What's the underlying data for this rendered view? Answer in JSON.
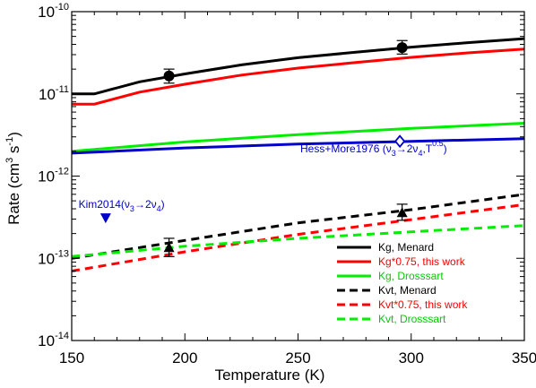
{
  "chart_data": {
    "type": "line",
    "xlabel": "Temperature (K)",
    "ylabel": {
      "main": "Rate (cm",
      "sup1": "3",
      "mid": " s",
      "sup2": "-1",
      "end": ")"
    },
    "xlim": [
      150,
      350
    ],
    "ylim_log10": [
      -14,
      -10
    ],
    "yscale": "log",
    "x_ticks": [
      150,
      200,
      250,
      300,
      350
    ],
    "x_tick_labels": [
      "150",
      "200",
      "250",
      "300",
      "350"
    ],
    "y_ticks": [
      -14,
      -13,
      -12,
      -11,
      -10
    ],
    "y_tick_labels": [
      {
        "base": "10",
        "exp": "-14"
      },
      {
        "base": "10",
        "exp": "-13"
      },
      {
        "base": "10",
        "exp": "-12"
      },
      {
        "base": "10",
        "exp": "-11"
      },
      {
        "base": "10",
        "exp": "-10"
      }
    ],
    "grid": false,
    "legend_position": "bottom-right",
    "series": [
      {
        "name": "Kg, Menard",
        "style": "solid",
        "color": "#000000",
        "x": [
          150,
          160,
          180,
          200,
          225,
          250,
          275,
          300,
          325,
          350
        ],
        "y": [
          1e-11,
          1e-11,
          1.4e-11,
          1.75e-11,
          2.25e-11,
          2.75e-11,
          3.2e-11,
          3.7e-11,
          4.2e-11,
          4.7e-11
        ]
      },
      {
        "name": "Kg*0.75, this work",
        "style": "solid",
        "color": "#ff0000",
        "x": [
          150,
          160,
          180,
          200,
          225,
          250,
          275,
          300,
          325,
          350
        ],
        "y": [
          7.5e-12,
          7.5e-12,
          1.05e-11,
          1.31e-11,
          1.69e-11,
          2.06e-11,
          2.4e-11,
          2.78e-11,
          3.15e-11,
          3.5e-11
        ]
      },
      {
        "name": "Kg, Drosssart",
        "style": "solid",
        "color": "#00ee00",
        "x": [
          150,
          200,
          250,
          300,
          350
        ],
        "y": [
          2e-12,
          2.6e-12,
          3.2e-12,
          3.8e-12,
          4.4e-12
        ]
      },
      {
        "name": "Hess+More1976",
        "style": "solid",
        "color": "#0000cc",
        "in_legend": false,
        "x": [
          150,
          200,
          250,
          300,
          350
        ],
        "y": [
          1.9e-12,
          2.2e-12,
          2.45e-12,
          2.65e-12,
          2.85e-12
        ]
      },
      {
        "name": "Kvt, Menard",
        "style": "dashed",
        "color": "#000000",
        "x": [
          150,
          200,
          250,
          300,
          350
        ],
        "y": [
          1e-13,
          1.65e-13,
          2.7e-13,
          3.9e-13,
          6e-13
        ]
      },
      {
        "name": "Kvt*0.75, this work",
        "style": "dashed",
        "color": "#ff0000",
        "x": [
          150,
          200,
          250,
          300,
          350
        ],
        "y": [
          7e-14,
          1.2e-13,
          1.95e-13,
          2.95e-13,
          4.5e-13
        ]
      },
      {
        "name": "Kvt, Drosssart",
        "style": "dashed",
        "color": "#00ee00",
        "x": [
          150,
          200,
          250,
          300,
          350
        ],
        "y": [
          1.05e-13,
          1.4e-13,
          1.75e-13,
          2.1e-13,
          2.5e-13
        ]
      }
    ],
    "points": [
      {
        "kind": "circle",
        "x": 193,
        "y": 1.65e-11,
        "yerr_low": 1.35e-11,
        "yerr_high": 2e-11,
        "color": "#000000"
      },
      {
        "kind": "circle",
        "x": 296,
        "y": 3.65e-11,
        "yerr_low": 3.05e-11,
        "yerr_high": 4.45e-11,
        "color": "#000000"
      },
      {
        "kind": "triangle-up",
        "x": 193,
        "y": 1.35e-13,
        "yerr_low": 1.05e-13,
        "yerr_high": 1.75e-13,
        "color": "#000000"
      },
      {
        "kind": "triangle-up",
        "x": 296,
        "y": 3.6e-13,
        "yerr_low": 2.9e-13,
        "yerr_high": 4.55e-13,
        "color": "#000000"
      },
      {
        "kind": "diamond-open",
        "x": 295,
        "y": 2.65e-12,
        "color": "#0000cc"
      },
      {
        "kind": "triangle-down",
        "x": 165,
        "y": 3.1e-13,
        "color": "#0000cc"
      }
    ],
    "annotations": [
      {
        "id": "hess",
        "color": "#0000cc",
        "x": 251,
        "y": 1.95e-12,
        "a": "Hess+More1976 (",
        "b": "ν",
        "c": "3",
        "d": "→2ν",
        "e": "4",
        "f": ",T",
        "g": "0.5",
        "h": ")"
      },
      {
        "id": "kim",
        "color": "#0000cc",
        "x": 153,
        "y": 4.1e-13,
        "a": "Kim2014(",
        "b": "ν",
        "c": "3",
        "d": "→2ν",
        "e": "4",
        "h": ")"
      }
    ],
    "legend": [
      {
        "label": "Kg, Menard",
        "color": "#000000",
        "text_color": "#000000",
        "style": "solid"
      },
      {
        "label": "Kg*0.75, this work",
        "color": "#ff0000",
        "text_color": "#ff0000",
        "style": "solid"
      },
      {
        "label": "Kg, Drosssart",
        "color": "#00ee00",
        "text_color": "#00cc00",
        "style": "solid"
      },
      {
        "label": "Kvt, Menard",
        "color": "#000000",
        "text_color": "#000000",
        "style": "dashed"
      },
      {
        "label": "Kvt*0.75, this work",
        "color": "#ff0000",
        "text_color": "#ff0000",
        "style": "dashed"
      },
      {
        "label": "Kvt, Drosssart",
        "color": "#00ee00",
        "text_color": "#00cc00",
        "style": "dashed"
      }
    ]
  }
}
